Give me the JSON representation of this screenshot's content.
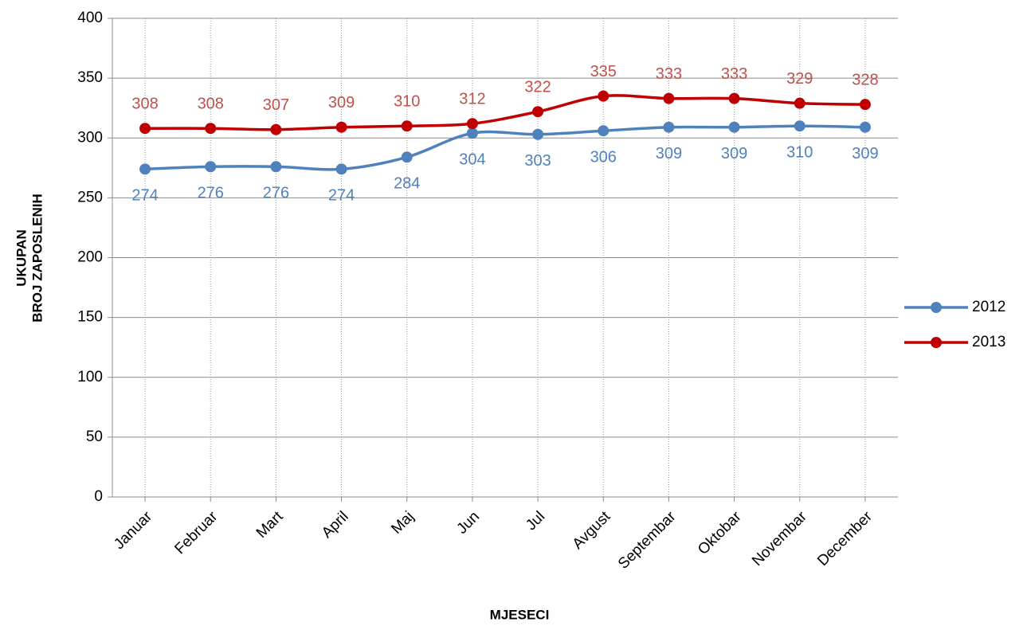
{
  "chart_data": {
    "type": "line",
    "categories": [
      "Januar",
      "Februar",
      "Mart",
      "April",
      "Maj",
      "Jun",
      "Jul",
      "Avgust",
      "Septembar",
      "Oktobar",
      "Novembar",
      "December"
    ],
    "series": [
      {
        "name": "2012",
        "color": "#4f81bd",
        "values": [
          274,
          276,
          276,
          274,
          284,
          304,
          303,
          306,
          309,
          309,
          310,
          309
        ]
      },
      {
        "name": "2013",
        "color": "#c00000",
        "values": [
          308,
          308,
          307,
          309,
          310,
          312,
          322,
          335,
          333,
          333,
          329,
          328
        ]
      }
    ],
    "xlabel": "MJESECI",
    "ylabel": [
      "UKUPAN",
      "BROJ ZAPOSLENIH"
    ],
    "ylim": [
      0,
      400
    ],
    "yticks": [
      0,
      50,
      100,
      150,
      200,
      250,
      300,
      350,
      400
    ],
    "grid": true,
    "legend": "right"
  }
}
